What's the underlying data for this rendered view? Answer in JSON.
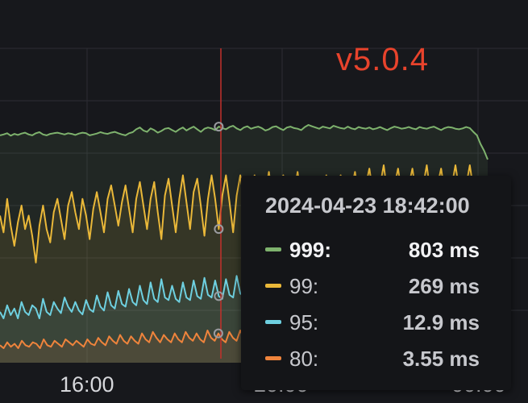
{
  "annotation": {
    "label": "v5.0.4",
    "color": "#e8432c"
  },
  "x_axis": {
    "ticks": [
      "16:00",
      "20:00",
      "00:00"
    ]
  },
  "chart_data": {
    "type": "line",
    "grid": true,
    "y_unit": "ms",
    "series": [
      {
        "name": "999",
        "color": "#7eb26d",
        "values": [
          700,
          705,
          712,
          698,
          708,
          702,
          710,
          715,
          705,
          700,
          712,
          718,
          705,
          700,
          708,
          712,
          715,
          710,
          705,
          712,
          708,
          702,
          710,
          715,
          712,
          700,
          705,
          710,
          718,
          712,
          708,
          715,
          720,
          712,
          705,
          700,
          712,
          718,
          735,
          745,
          728,
          720,
          740,
          730,
          715,
          725,
          738,
          742,
          730,
          720,
          735,
          745,
          728,
          740,
          750,
          735,
          720,
          738,
          745,
          740,
          730,
          750,
          742,
          735,
          748,
          755,
          740,
          730,
          745,
          752,
          738,
          745,
          750,
          742,
          728,
          735,
          748,
          752,
          740,
          730,
          745,
          750,
          742,
          738,
          730,
          748,
          760,
          752,
          745,
          738,
          750,
          745,
          740,
          755,
          748,
          742,
          738,
          750,
          740,
          735,
          748,
          742,
          738,
          745,
          735,
          740,
          748,
          738,
          730,
          742,
          750,
          745,
          738,
          742,
          748,
          740,
          735,
          748,
          742,
          738,
          745,
          750,
          740,
          730,
          742,
          748,
          745,
          738,
          735,
          740,
          748,
          742,
          720,
          700,
          650,
          610,
          560
        ]
      },
      {
        "name": "99",
        "color": "#eab839",
        "values": [
          470,
          420,
          520,
          440,
          380,
          450,
          500,
          430,
          470,
          410,
          330,
          440,
          500,
          430,
          390,
          480,
          520,
          460,
          400,
          500,
          540,
          480,
          430,
          520,
          470,
          400,
          490,
          540,
          480,
          420,
          520,
          560,
          500,
          440,
          510,
          560,
          490,
          420,
          520,
          570,
          500,
          430,
          520,
          570,
          480,
          400,
          530,
          580,
          500,
          420,
          520,
          590,
          510,
          430,
          540,
          580,
          500,
          410,
          520,
          590,
          520,
          430,
          530,
          590,
          510,
          420,
          530,
          590,
          520,
          430,
          540,
          590,
          510,
          430,
          540,
          600,
          520,
          440,
          540,
          590,
          520,
          440,
          540,
          600,
          520,
          440,
          530,
          580,
          520,
          450,
          540,
          590,
          520,
          440,
          550,
          590,
          520,
          440,
          550,
          600,
          530,
          450,
          560,
          610,
          540,
          460,
          560,
          620,
          540,
          460,
          560,
          610,
          540,
          460,
          560,
          610,
          540,
          460,
          560,
          620,
          540,
          470,
          560,
          610,
          540,
          470,
          560,
          620,
          550,
          470,
          560,
          620,
          550,
          480,
          420,
          560,
          500
        ]
      },
      {
        "name": "95",
        "color": "#6ed0e0",
        "values": [
          40,
          30,
          50,
          35,
          45,
          30,
          55,
          40,
          35,
          50,
          45,
          30,
          60,
          40,
          35,
          55,
          45,
          38,
          62,
          48,
          40,
          55,
          42,
          36,
          58,
          44,
          40,
          65,
          48,
          42,
          70,
          50,
          45,
          72,
          52,
          48,
          75,
          55,
          50,
          80,
          58,
          52,
          85,
          60,
          55,
          90,
          62,
          58,
          80,
          60,
          55,
          85,
          62,
          58,
          88,
          64,
          60,
          92,
          66,
          62,
          88,
          64,
          60,
          90,
          66,
          62,
          95,
          68,
          64,
          92,
          66,
          62,
          95,
          70,
          66,
          98,
          72,
          68,
          95,
          70,
          66,
          100,
          72,
          68,
          96,
          70,
          66,
          98,
          72,
          68,
          100,
          74,
          70,
          96,
          72,
          68,
          98,
          74,
          70,
          102,
          74,
          70,
          98,
          74,
          70,
          100,
          74,
          70,
          102,
          76,
          72,
          100,
          74,
          70,
          102,
          76,
          72,
          104,
          76,
          72,
          100,
          74,
          70,
          104,
          76,
          72,
          102,
          76,
          72,
          104,
          78,
          74,
          90,
          80,
          70,
          60,
          50
        ]
      },
      {
        "name": "80",
        "color": "#ef843c",
        "values": [
          3.2,
          3.0,
          3.4,
          3.1,
          3.3,
          3.0,
          3.5,
          3.2,
          3.1,
          3.4,
          3.3,
          3.0,
          3.6,
          3.2,
          3.1,
          3.5,
          3.3,
          3.1,
          3.6,
          3.4,
          3.2,
          3.5,
          3.3,
          3.1,
          3.6,
          3.3,
          3.2,
          3.7,
          3.4,
          3.2,
          3.8,
          3.5,
          3.3,
          3.9,
          3.5,
          3.3,
          3.8,
          3.5,
          3.3,
          4.0,
          3.6,
          3.4,
          4.1,
          3.7,
          3.4,
          3.9,
          3.6,
          3.4,
          4.0,
          3.6,
          3.4,
          4.1,
          3.7,
          3.5,
          4.0,
          3.6,
          3.4,
          4.2,
          3.7,
          3.5,
          4.0,
          3.6,
          3.4,
          4.1,
          3.7,
          3.5,
          4.2,
          3.7,
          3.5,
          4.0,
          3.6,
          3.4,
          4.1,
          3.7,
          3.5,
          4.2,
          3.8,
          3.5,
          4.0,
          3.6,
          3.4,
          4.1,
          3.7,
          3.5,
          4.2,
          3.8,
          3.5,
          4.0,
          3.6,
          3.4,
          4.1,
          3.7,
          3.5,
          4.2,
          3.8,
          3.5,
          4.0,
          3.6,
          3.4,
          4.1,
          3.7,
          3.5,
          4.2,
          3.8,
          3.5,
          4.0,
          3.6,
          3.4,
          4.1,
          3.7,
          3.5,
          4.2,
          3.8,
          3.5,
          4.0,
          3.6,
          3.4,
          4.1,
          3.7,
          3.5,
          4.2,
          3.8,
          3.5,
          4.0,
          3.6,
          3.4,
          4.1,
          3.7,
          3.5,
          4.2,
          3.8,
          3.5,
          3.4,
          3.2,
          3.0
        ]
      }
    ]
  },
  "tooltip": {
    "time": "2024-04-23 18:42:00",
    "rows": [
      {
        "name": "999:",
        "value": "803 ms",
        "color": "#7eb26d"
      },
      {
        "name": "99:",
        "value": "269 ms",
        "color": "#eab839"
      },
      {
        "name": "95:",
        "value": "12.9 ms",
        "color": "#6ed0e0"
      },
      {
        "name": "80:",
        "value": "3.55 ms",
        "color": "#ef843c"
      }
    ]
  }
}
